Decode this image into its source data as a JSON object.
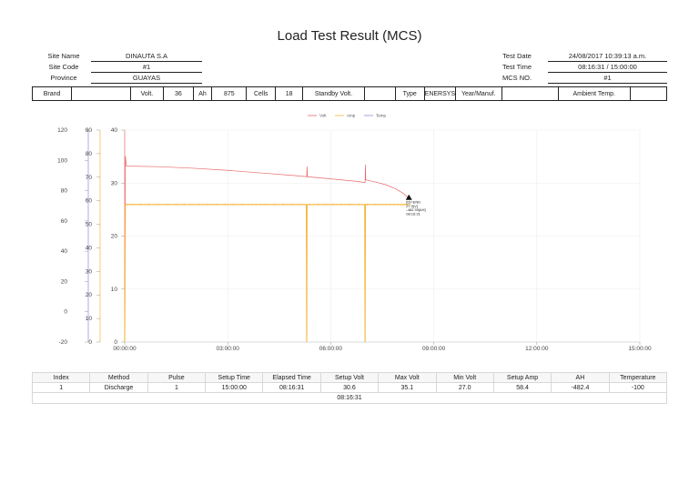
{
  "header": {
    "title": "Load Test Result (MCS)"
  },
  "site_info": {
    "site_name_label": "Site Name",
    "site_name": "DINAUTA S.A",
    "site_code_label": "Site Code",
    "site_code": "#1",
    "province_label": "Province",
    "province": "GUAYAS"
  },
  "test_info": {
    "test_date_label": "Test Date",
    "test_date": "24/08/2017 10:39:13 a.m.",
    "test_time_label": "Test Time",
    "test_time": "08:16:31 / 15:00:00",
    "mcs_no_label": "MCS NO.",
    "mcs_no": "#1"
  },
  "specs": {
    "brand_label": "Brand",
    "brand": "",
    "volt_label": "Volt.",
    "volt": "36",
    "ah_label": "Ah",
    "ah": "875",
    "cells_label": "Cells",
    "cells": "18",
    "standby_volt_label": "Standby Volt.",
    "standby_volt": "",
    "type_label": "Type",
    "type": "ENERSYS",
    "year_manuf_label": "Year/Manuf.",
    "year_manuf": "",
    "ambient_temp_label": "Ambient Temp.",
    "ambient_temp": ""
  },
  "chart_data": {
    "type": "line",
    "title": "",
    "legend": [
      "Volt",
      "Amp",
      "Temp"
    ],
    "legend_position": "top",
    "colors": {
      "Volt": "#e8686b",
      "Amp": "#f5b53a",
      "Temp": "#8c8ce0"
    },
    "xlabel": "",
    "x_ticks": [
      "00:00:00",
      "03:00:00",
      "06:00:00",
      "09:00:00",
      "12:00:00",
      "15:00:00"
    ],
    "xlim_hours": [
      0,
      15
    ],
    "axes": {
      "temp": {
        "ticks": [
          -20,
          0,
          20,
          40,
          60,
          80,
          100,
          120
        ],
        "ylim": [
          -20,
          120
        ]
      },
      "amp": {
        "ticks": [
          0,
          10,
          20,
          30,
          40,
          50,
          60,
          70,
          80,
          90
        ],
        "ylim": [
          0,
          90
        ]
      },
      "volt": {
        "ticks": [
          0,
          10,
          20,
          30,
          40
        ],
        "ylim": [
          0,
          40
        ]
      }
    },
    "grid": true,
    "series": [
      {
        "name": "Volt",
        "x_hours": [
          0,
          0.02,
          0.05,
          1,
          2,
          3,
          4,
          5,
          5.3,
          5.31,
          5.32,
          6,
          6.8,
          7.0,
          7.01,
          7.02,
          7.3,
          7.6,
          7.9,
          8.1,
          8.2,
          8.275
        ],
        "values": [
          0,
          35.1,
          33.2,
          33.1,
          32.8,
          32.4,
          31.9,
          31.4,
          31.2,
          33.1,
          31.2,
          30.8,
          30.3,
          30.1,
          33.5,
          30.6,
          30.2,
          29.7,
          28.9,
          28.1,
          27.6,
          27.0
        ]
      },
      {
        "name": "Amp",
        "x_hours": [
          0,
          0.02,
          5.29,
          5.3,
          5.31,
          6.99,
          7.0,
          7.01,
          8.275
        ],
        "values": [
          0,
          58.4,
          58.4,
          0,
          58.4,
          58.4,
          0,
          58.4,
          58.4
        ]
      },
      {
        "name": "Temp",
        "x_hours": [],
        "values": []
      }
    ],
    "annotations": [
      {
        "x_hours": 8.275,
        "y_volt": 27.0,
        "marker": "triangle",
        "lines": [
          "[D]=END",
          "27.0[V]",
          "-482.39[AH]",
          "08:16:31"
        ]
      }
    ]
  },
  "results": {
    "columns": [
      "Index",
      "Method",
      "Pulse",
      "Setup Time",
      "Elapsed Time",
      "Setup Volt",
      "Max Volt",
      "Min Volt",
      "Setup Amp",
      "AH",
      "Temperature"
    ],
    "rows": [
      [
        "1",
        "Discharge",
        "1",
        "15:00:00",
        "08:16:31",
        "30.6",
        "35.1",
        "27.0",
        "58.4",
        "-482.4",
        "-100"
      ]
    ],
    "summary": "08:16:31"
  }
}
